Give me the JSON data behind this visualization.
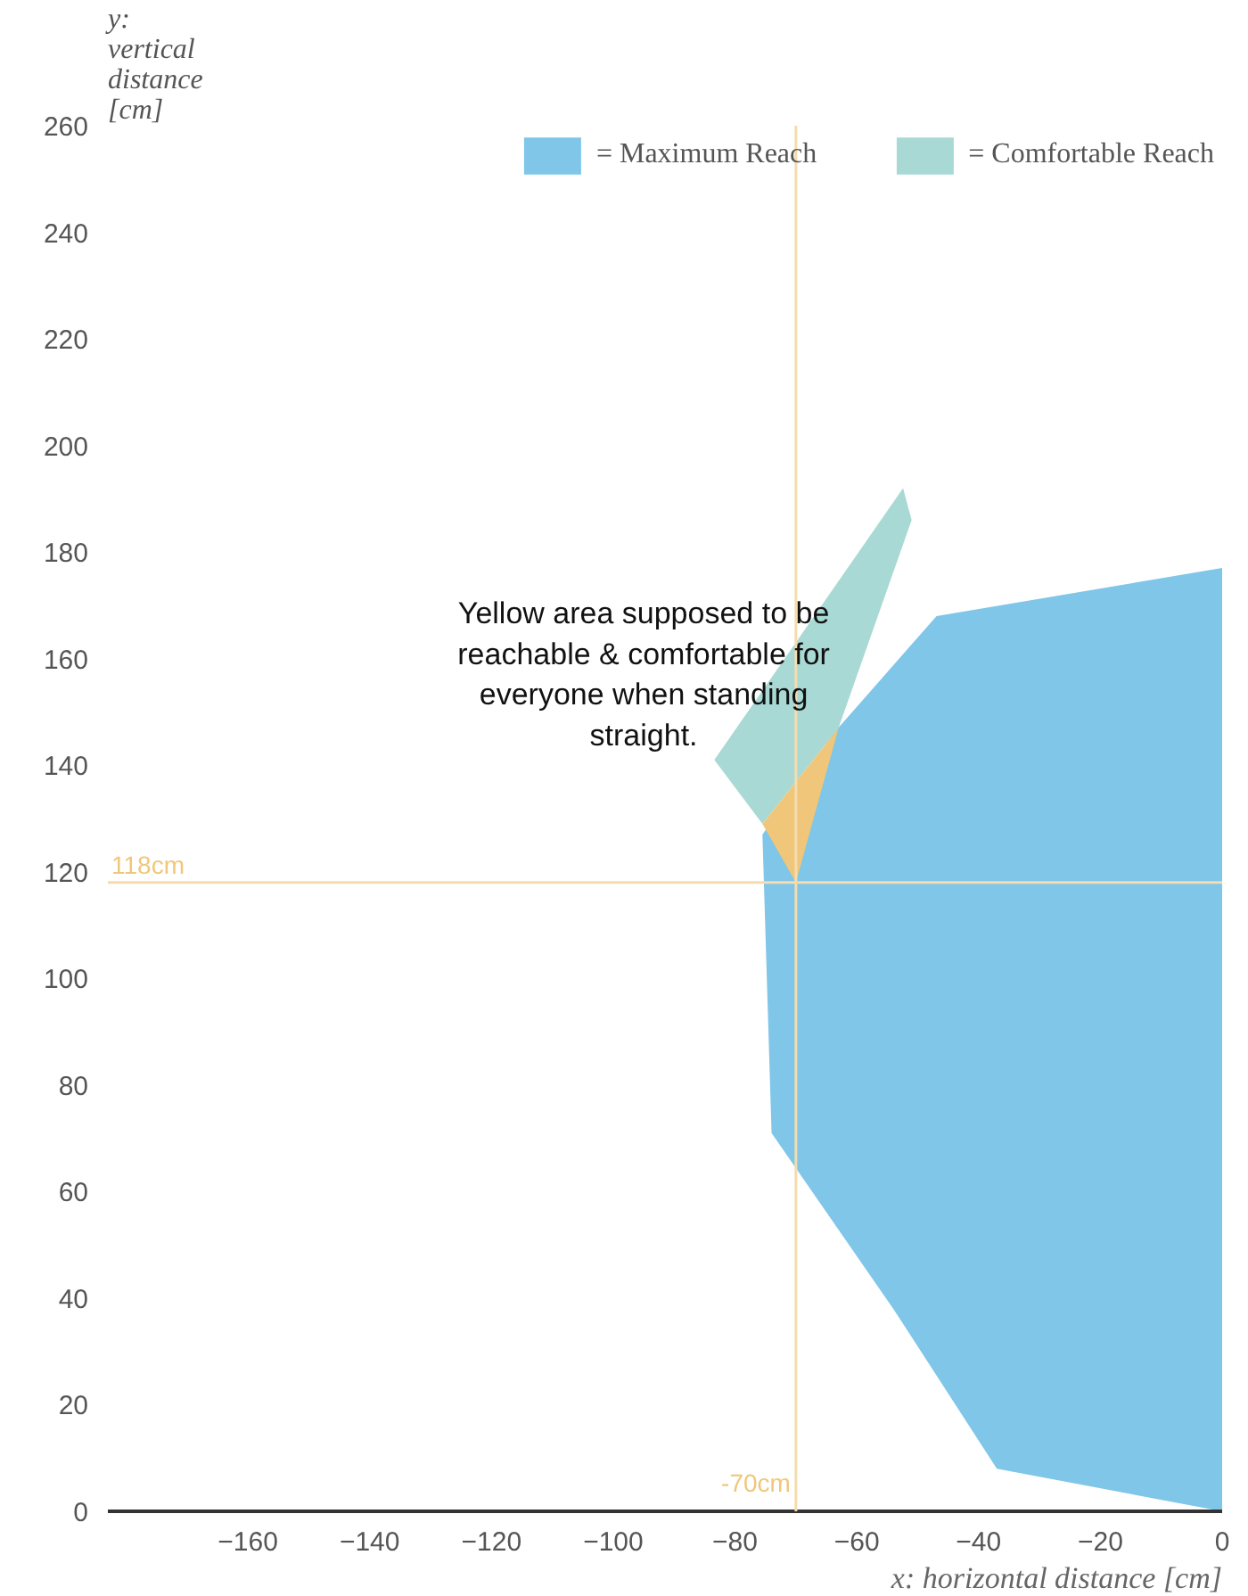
{
  "chart_data": {
    "type": "area",
    "xlabel": "x: horizontal distance [cm]",
    "ylabel": "y:\nvertical\ndistance\n[cm]",
    "series": [
      {
        "name": "= Maximum Reach",
        "color": "#7fc6e8",
        "x": [
          0,
          -46.9,
          -63.8,
          -75.5,
          -74,
          -54,
          -37,
          0
        ],
        "values": [
          177,
          168,
          146,
          127,
          71,
          38,
          8,
          0
        ]
      },
      {
        "name": "= Comfortable Reach",
        "color": "#a9d9d4",
        "x": [
          -52.4,
          -51,
          -63,
          -75.5,
          -83.4
        ],
        "values": [
          192,
          186,
          147,
          129,
          141
        ]
      },
      {
        "color": "#f0c77a",
        "x": [
          -75.5,
          -63,
          -70
        ],
        "values": [
          129,
          147,
          118
        ]
      }
    ],
    "ref_lines": [
      {
        "axis": "x",
        "value": -70,
        "label": "-70cm",
        "color": "#f5dcae"
      },
      {
        "axis": "y",
        "value": 118,
        "label": "118cm",
        "color": "#f5dcae"
      }
    ],
    "annotations": [
      "Yellow area supposed to be\nreachable & comfortable for\neveryone when standing\nstraight."
    ],
    "xlim": [
      -183,
      0
    ],
    "ylim": [
      0,
      260
    ],
    "xticks": [
      -160,
      -140,
      -120,
      -100,
      -80,
      -60,
      -40,
      -20,
      0
    ],
    "yticks": [
      0,
      20,
      40,
      60,
      80,
      100,
      120,
      140,
      160,
      180,
      200,
      220,
      240,
      260
    ],
    "grid": false,
    "legend": "top"
  }
}
